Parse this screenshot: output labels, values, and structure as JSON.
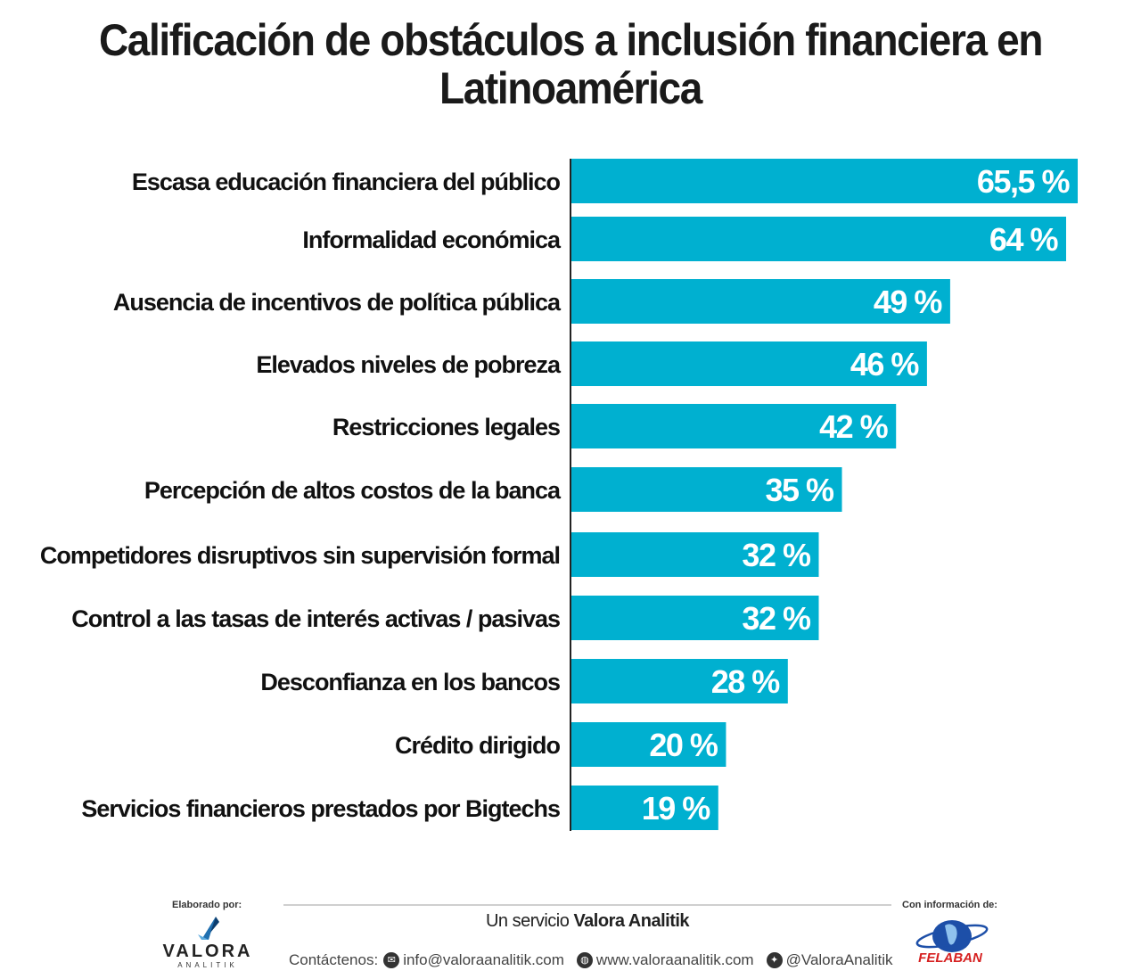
{
  "header": {
    "title_line1": "Calificación de obstáculos a inclusión financiera en",
    "title_line2": "Latinoamérica"
  },
  "chart_data": {
    "type": "bar",
    "orientation": "horizontal",
    "title": "Calificación de obstáculos a inclusión financiera en Latinoamérica",
    "categories": [
      "Escasa educación financiera del público",
      "Informalidad económica",
      "Ausencia de incentivos de política pública",
      "Elevados niveles de pobreza",
      "Restricciones legales",
      "Percepción de altos costos de la banca",
      "Competidores disruptivos sin supervisión formal",
      "Control a las tasas de interés activas / pasivas",
      "Desconfianza en los bancos",
      "Crédito dirigido",
      "Servicios financieros prestados por Bigtechs"
    ],
    "values": [
      65.5,
      64,
      49,
      46,
      42,
      35,
      32,
      32,
      28,
      20,
      19
    ],
    "value_labels": [
      "65,5 %",
      "64 %",
      "49 %",
      "46 %",
      "42 %",
      "35 %",
      "32 %",
      "32 %",
      "28 %",
      "20 %",
      "19 %"
    ],
    "bar_color": "#00b0d0",
    "xlabel": "",
    "ylabel": "",
    "grid": false,
    "legend": "none"
  },
  "footer": {
    "elaborado_label": "Elaborado por:",
    "valora_name": "VALORA",
    "valora_sub": "ANALITIK",
    "service_prefix": "Un servicio ",
    "service_brand": "Valora Analitik",
    "contact_label": "Contáctenos:",
    "email": "info@valoraanalitik.com",
    "website": "www.valoraanalitik.com",
    "twitter": "@ValoraAnalitik",
    "info_label": "Con información de:",
    "felaban_name": "FELABAN",
    "icons": [
      "envelope-icon",
      "globe-icon",
      "twitter-icon"
    ]
  }
}
